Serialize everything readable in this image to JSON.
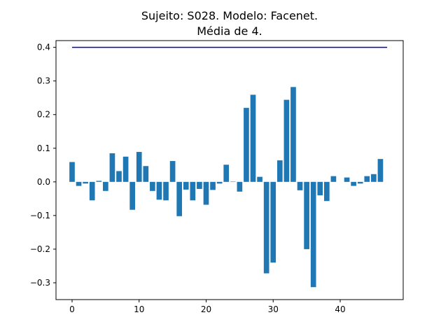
{
  "chart_data": {
    "type": "bar",
    "title_line1": "Sujeito: S028. Modelo: Facenet.",
    "title_line2": "Média de 4.",
    "xlabel": "",
    "ylabel": "",
    "xlim": [
      -2.4,
      49.4
    ],
    "ylim": [
      -0.35,
      0.42
    ],
    "x_ticks": [
      0,
      10,
      20,
      30,
      40
    ],
    "x_tick_labels": [
      "0",
      "10",
      "20",
      "30",
      "40"
    ],
    "y_ticks": [
      -0.3,
      -0.2,
      -0.1,
      0.0,
      0.1,
      0.2,
      0.3,
      0.4
    ],
    "y_tick_labels": [
      "−0.3",
      "−0.2",
      "−0.1",
      "0.0",
      "0.1",
      "0.2",
      "0.3",
      "0.4"
    ],
    "grid": false,
    "bar_color": "#1f77b4",
    "categories": [
      0,
      1,
      2,
      3,
      4,
      5,
      6,
      7,
      8,
      9,
      10,
      11,
      12,
      13,
      14,
      15,
      16,
      17,
      18,
      19,
      20,
      21,
      22,
      23,
      24,
      25,
      26,
      27,
      28,
      29,
      30,
      31,
      32,
      33,
      34,
      35,
      36,
      37,
      38,
      39,
      40,
      41,
      42,
      43,
      44,
      45,
      46,
      47
    ],
    "values": [
      0.059,
      -0.012,
      -0.005,
      -0.055,
      0.003,
      -0.027,
      0.085,
      0.032,
      0.075,
      -0.083,
      0.089,
      0.047,
      -0.027,
      -0.053,
      -0.055,
      0.062,
      -0.102,
      -0.023,
      -0.055,
      -0.021,
      -0.068,
      -0.024,
      -0.005,
      0.051,
      0.001,
      -0.029,
      0.22,
      0.259,
      0.015,
      -0.272,
      -0.24,
      0.064,
      0.244,
      0.282,
      -0.025,
      -0.2,
      -0.313,
      -0.04,
      -0.057,
      0.017,
      0.0,
      0.013,
      -0.012,
      -0.005,
      0.017,
      0.023,
      0.068,
      0.0
    ],
    "reference_line": {
      "y": 0.4,
      "x_range": [
        0,
        47
      ],
      "color": "#0000cd"
    }
  }
}
